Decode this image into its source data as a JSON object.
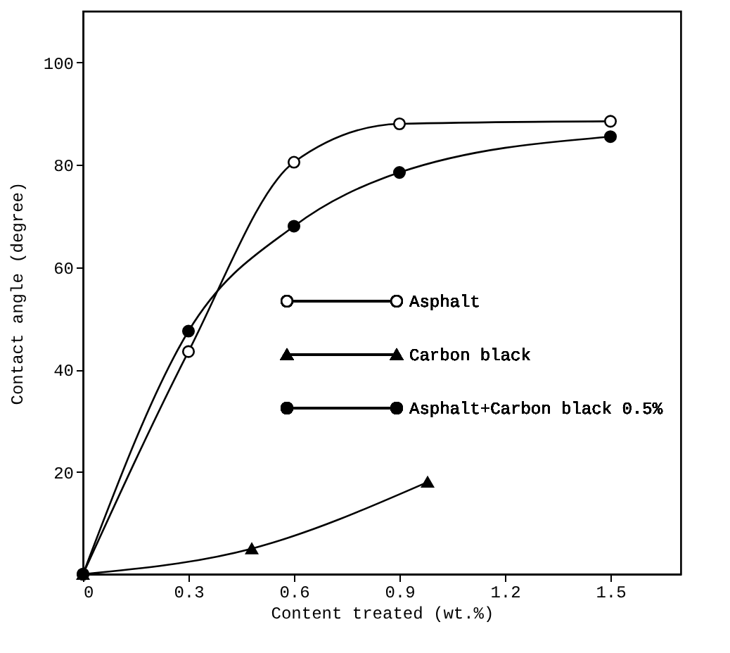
{
  "chart_data": {
    "type": "line",
    "xlabel": "Content treated (wt.%)",
    "ylabel": "Contact angle (degree)",
    "xlim": [
      0,
      1.7
    ],
    "xticks": [
      0,
      0.3,
      0.6,
      0.9,
      1.2,
      1.5
    ],
    "ylim": [
      0,
      110
    ],
    "yticks": [
      20,
      40,
      60,
      80,
      100
    ],
    "grid": false,
    "legend": "right",
    "line_style": "solid",
    "series": [
      {
        "name": "Asphalt",
        "color": "#000000",
        "colors": [
          "#ffffff",
          "#ffffff",
          "#ffffff",
          "#ffffff",
          "#ffffff"
        ],
        "marker": "circle",
        "x": [
          0,
          0.3,
          0.6,
          0.9,
          1.5
        ],
        "values": [
          0,
          43.5,
          80.5,
          88,
          88.5
        ]
      },
      {
        "name": "Carbon black",
        "color": "#000000",
        "marker": "triangle",
        "x": [
          0,
          0.48,
          0.98
        ],
        "values": [
          0,
          5,
          18
        ]
      },
      {
        "name": "Asphalt+Carbon black 0.5%",
        "color": "#000000",
        "marker": "circle",
        "x": [
          0,
          0.3,
          0.6,
          0.9,
          1.5
        ],
        "values": [
          0,
          47.5,
          68,
          78.5,
          85.5
        ]
      }
    ]
  }
}
